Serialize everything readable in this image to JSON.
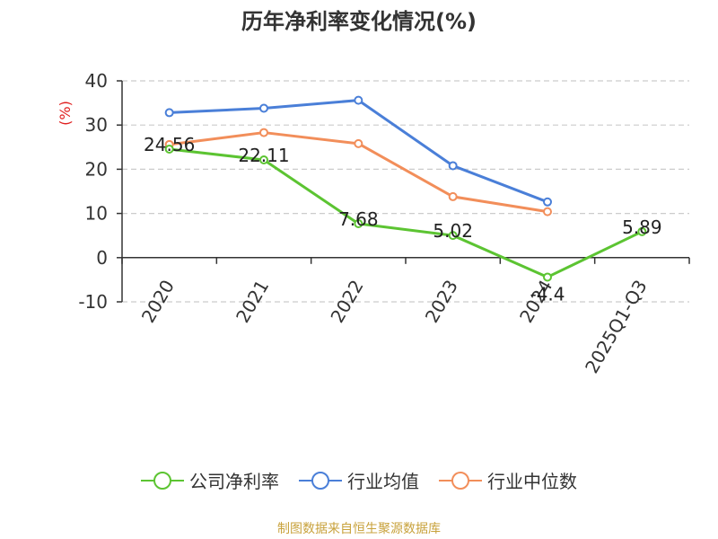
{
  "chart_data": {
    "type": "line",
    "title": "历年净利率变化情况(%)",
    "ylabel": "(%)",
    "xlabel": "",
    "categories": [
      "2020",
      "2021",
      "2022",
      "2023",
      "2024",
      "2025Q1-Q3"
    ],
    "y_ticks": [
      "40",
      "30",
      "20",
      "10",
      "0",
      "-10"
    ],
    "ylim": [
      -10,
      40
    ],
    "grid": true,
    "legend_position": "bottom",
    "series": [
      {
        "name": "公司净利率",
        "color": "#5cc432",
        "values": [
          24.56,
          22.11,
          7.68,
          5.02,
          -4.4,
          5.89
        ],
        "labels": [
          "24.56",
          "22.11",
          "7.68",
          "5.02",
          "-4.4",
          "5.89"
        ]
      },
      {
        "name": "行业均值",
        "color": "#4a7fd8",
        "values": [
          32.8,
          33.8,
          35.6,
          20.8,
          12.6,
          null
        ]
      },
      {
        "name": "行业中位数",
        "color": "#f28e5a",
        "values": [
          25.6,
          28.3,
          25.8,
          13.8,
          10.4,
          null
        ]
      }
    ]
  },
  "source_text": "制图数据来自恒生聚源数据库"
}
